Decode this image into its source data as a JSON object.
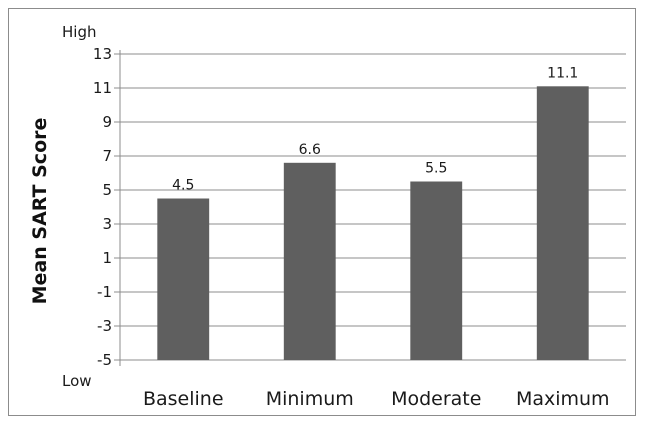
{
  "chart_data": {
    "type": "bar",
    "categories": [
      "Baseline",
      "Minimum",
      "Moderate",
      "Maximum"
    ],
    "values": [
      4.5,
      6.6,
      5.5,
      11.1
    ],
    "data_labels": [
      "4.5",
      "6.6",
      "5.5",
      "11.1"
    ],
    "title": "",
    "xlabel": "",
    "ylabel": "Mean SART Score",
    "ylim": [
      -5,
      13
    ],
    "yticks": [
      -5,
      -3,
      -1,
      1,
      3,
      5,
      7,
      9,
      11,
      13
    ],
    "ytick_labels": [
      "-5",
      "-3",
      "-1",
      "1",
      "3",
      "5",
      "7",
      "9",
      "11",
      "13"
    ],
    "y_high_label": "High",
    "y_low_label": "Low",
    "grid": true,
    "legend": "none",
    "colors": {
      "bar": "#5f5f5f",
      "grid": "#8c8c8c",
      "axis": "#8c8c8c",
      "frame": "#8c8c8c"
    }
  }
}
